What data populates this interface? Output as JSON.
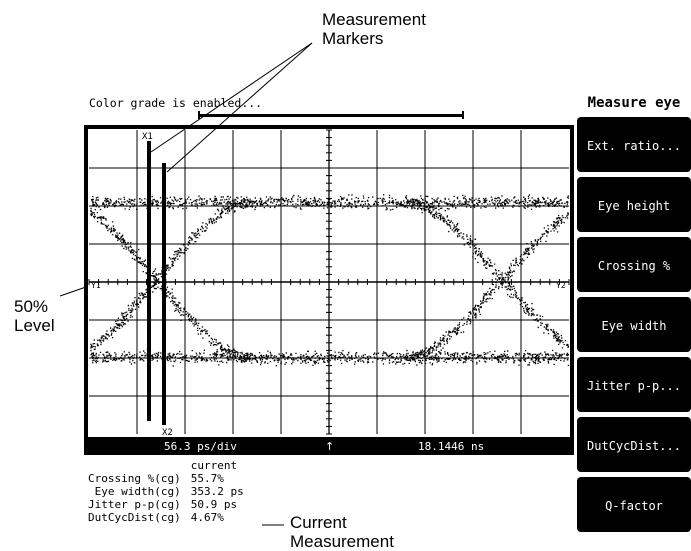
{
  "annotations": {
    "measurement_markers": [
      "Measurement",
      "Markers"
    ],
    "level_50": [
      "50%",
      "Level"
    ],
    "current_measurement": [
      "Current",
      "Measurement"
    ]
  },
  "scope": {
    "status_text": "Color grade is enabled...",
    "marker_x1_label": "X1",
    "marker_x2_label": "X2",
    "level_left_label": "Y1",
    "level_right_label": "Y2",
    "timebase": "56.3 ps/div",
    "trigger_glyph": "↑",
    "position": "18.1446 ns"
  },
  "menu": {
    "title": "Measure eye",
    "buttons": [
      "Ext. ratio...",
      "Eye height",
      "Crossing %",
      "Eye width",
      "Jitter p-p...",
      "DutCycDist...",
      "Q-factor"
    ]
  },
  "measurements": {
    "header": "current",
    "rows": [
      {
        "label": "Crossing %(cg)",
        "value": "55.7%"
      },
      {
        "label": "Eye width(cg)",
        "value": "353.2 ps"
      },
      {
        "label": "Jitter p-p(cg)",
        "value": "50.9 ps"
      },
      {
        "label": "DutCycDist(cg)",
        "value": "4.67%"
      }
    ]
  },
  "colors": {
    "screen_bg": "#ffffff",
    "ink": "#000000",
    "softkey_bg": "#000000",
    "softkey_text": "#ffffff"
  }
}
